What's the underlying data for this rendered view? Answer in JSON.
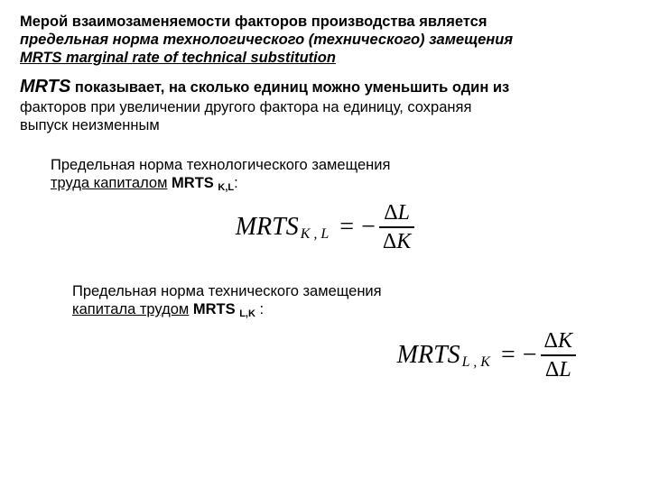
{
  "intro": {
    "line1_plain": "Мерой взаимозаменяемости факторов производства является",
    "line2_bi": "предельная норма технологического (технического) замещения",
    "line3_bi": "MRTS marginal rate of technical substitution"
  },
  "para2": {
    "mrts": "MRTS",
    "rest_bold": " показывает, на сколько единиц можно уменьшить один из",
    "line2": "факторов при увеличении другого фактора на единицу, сохраняя",
    "line3": "выпуск неизменным"
  },
  "block1": {
    "line1": "Предельная норма технологического замещения",
    "line2_prefix": "труда капиталом",
    "mrts_label": "MRTS ",
    "mrts_sub": "K,L",
    "colon": ":"
  },
  "block2": {
    "line1": "Предельная норма технического замещения",
    "line2_prefix": "капитала трудом",
    "mrts_label": "MRTS ",
    "mrts_sub": "L,K",
    "colon": " :"
  },
  "formula1": {
    "lhs": "MRTS",
    "sub": "K , L",
    "eq": "=",
    "minus": "−",
    "num_delta": "Δ",
    "num_var": "L",
    "den_delta": "Δ",
    "den_var": "K"
  },
  "formula2": {
    "lhs": "MRTS",
    "sub": "L , K",
    "eq": "=",
    "minus": "−",
    "num_delta": "Δ",
    "num_var": "K",
    "den_delta": "Δ",
    "den_var": "L"
  }
}
